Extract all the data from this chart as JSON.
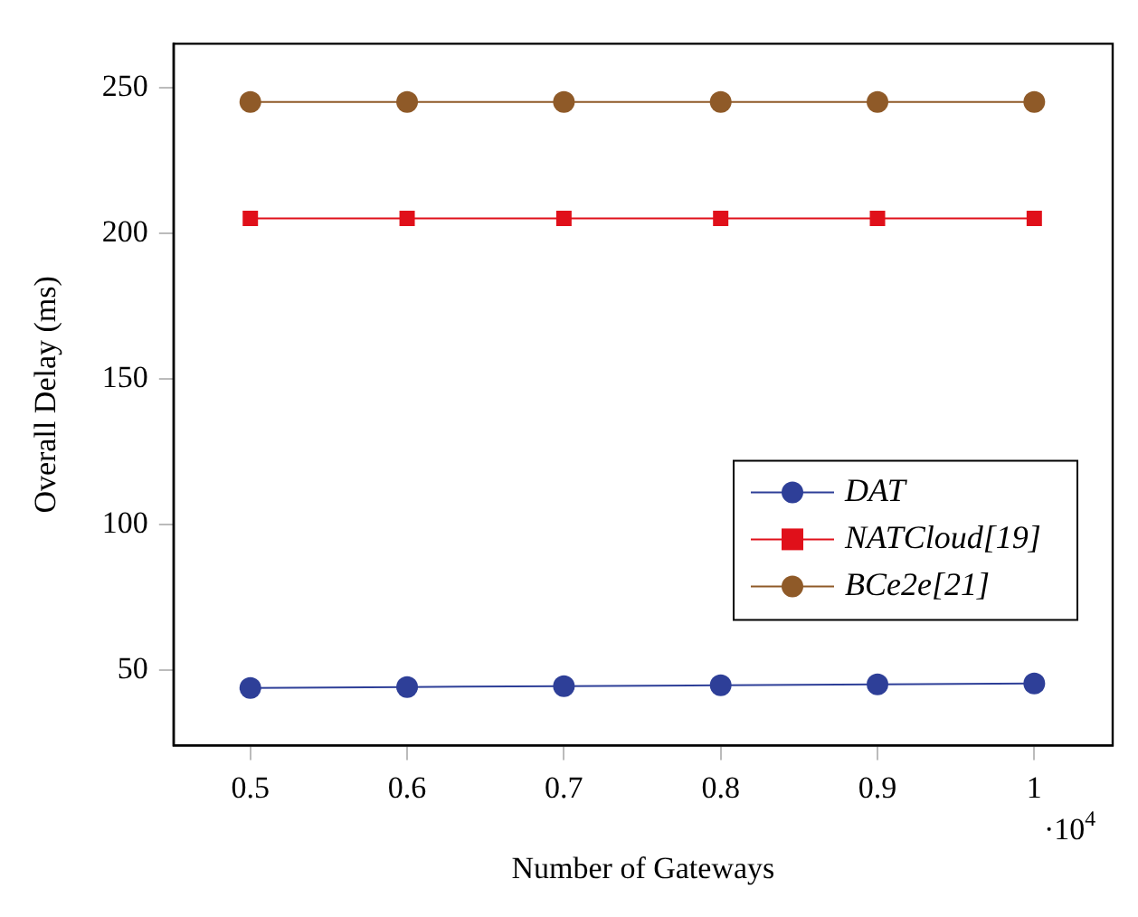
{
  "chart_data": {
    "type": "line",
    "xlabel": "Number of Gateways",
    "ylabel": "Overall Delay (ms)",
    "x": [
      0.5,
      0.6,
      0.7,
      0.8,
      0.9,
      1
    ],
    "series": [
      {
        "name": "DAT",
        "color": "#2e3f98",
        "marker": "circle",
        "values": [
          43.8,
          44.1,
          44.4,
          44.7,
          45.0,
          45.3
        ]
      },
      {
        "name": "NATCloud[19]",
        "color": "#e0101a",
        "marker": "square",
        "values": [
          205,
          205,
          205,
          205,
          205,
          205
        ]
      },
      {
        "name": "BCe2e[21]",
        "color": "#8f5a28",
        "marker": "circle",
        "values": [
          245,
          245,
          245,
          245,
          245,
          245
        ]
      }
    ],
    "xlim": [
      0.451,
      1.05
    ],
    "xticks": [
      0.5,
      0.6,
      0.7,
      0.8,
      0.9,
      1
    ],
    "ylim": [
      24,
      265
    ],
    "yticks": [
      50,
      100,
      150,
      200,
      250
    ],
    "annotations": [
      "·10$^{4}$"
    ],
    "legend": "bottom right",
    "grid": false
  }
}
